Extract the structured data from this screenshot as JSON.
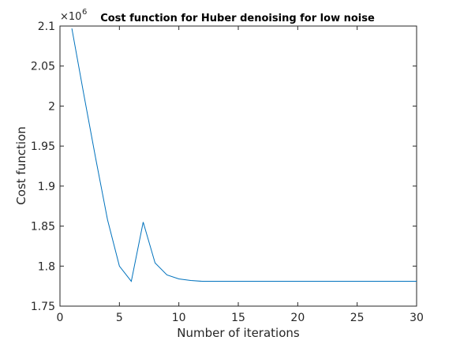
{
  "chart_data": {
    "type": "line",
    "title": "Cost function for Huber denoising for low noise",
    "xlabel": "Number of iterations",
    "ylabel": "Cost function",
    "y_exponent_base": "×10",
    "y_exponent_power": "6",
    "xlim": [
      0,
      30
    ],
    "ylim": [
      1.75,
      2.1
    ],
    "xticks": [
      0,
      5,
      10,
      15,
      20,
      25,
      30
    ],
    "yticks": [
      1.75,
      1.8,
      1.85,
      1.9,
      1.95,
      2,
      2.05,
      2.1
    ],
    "xtick_labels": [
      "0",
      "5",
      "10",
      "15",
      "20",
      "25",
      "30"
    ],
    "ytick_labels": [
      "1.75",
      "1.8",
      "1.85",
      "1.9",
      "1.95",
      "2",
      "2.05",
      "2.1"
    ],
    "grid": false,
    "line_color": "#0072BD",
    "series": [
      {
        "x": [
          1,
          2,
          3,
          4,
          5,
          6,
          7,
          8,
          9,
          10,
          11,
          12,
          13,
          14,
          15,
          16,
          17,
          18,
          19,
          20,
          21,
          22,
          23,
          24,
          25,
          26,
          27,
          28,
          29,
          30
        ],
        "values": [
          2.097,
          2.015,
          1.935,
          1.858,
          1.8,
          1.781,
          1.855,
          1.804,
          1.789,
          1.784,
          1.782,
          1.781,
          1.781,
          1.781,
          1.781,
          1.781,
          1.781,
          1.781,
          1.781,
          1.781,
          1.781,
          1.781,
          1.781,
          1.781,
          1.781,
          1.781,
          1.781,
          1.781,
          1.781,
          1.781
        ]
      }
    ]
  }
}
